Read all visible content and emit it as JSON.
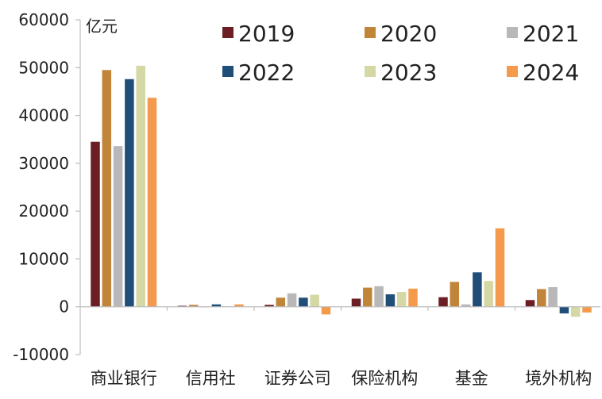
{
  "chart_data": {
    "type": "bar",
    "title": "",
    "ylabel": "亿元",
    "xlabel": "",
    "ylim": [
      -10000,
      60000
    ],
    "yticks": [
      -10000,
      0,
      10000,
      20000,
      30000,
      40000,
      50000,
      60000
    ],
    "grid": false,
    "legend_position": "top",
    "categories": [
      "商业银行",
      "信用社",
      "证券公司",
      "保险机构",
      "基金",
      "境外机构"
    ],
    "series": [
      {
        "name": "2019",
        "color": "#6b1f24",
        "values": [
          34500,
          200,
          400,
          1700,
          2000,
          1400
        ]
      },
      {
        "name": "2020",
        "color": "#c1853a",
        "values": [
          49500,
          400,
          1900,
          4000,
          5200,
          3700
        ]
      },
      {
        "name": "2021",
        "color": "#b8b8b8",
        "values": [
          33600,
          0,
          2800,
          4300,
          500,
          4100
        ]
      },
      {
        "name": "2022",
        "color": "#1f4e79",
        "values": [
          47600,
          500,
          1900,
          2600,
          7200,
          -1400
        ]
      },
      {
        "name": "2023",
        "color": "#d5d8a4",
        "values": [
          50400,
          100,
          2500,
          3100,
          5400,
          -2100
        ]
      },
      {
        "name": "2024",
        "color": "#f59a4c",
        "values": [
          43700,
          500,
          -1600,
          3800,
          16400,
          -1200
        ]
      }
    ]
  }
}
